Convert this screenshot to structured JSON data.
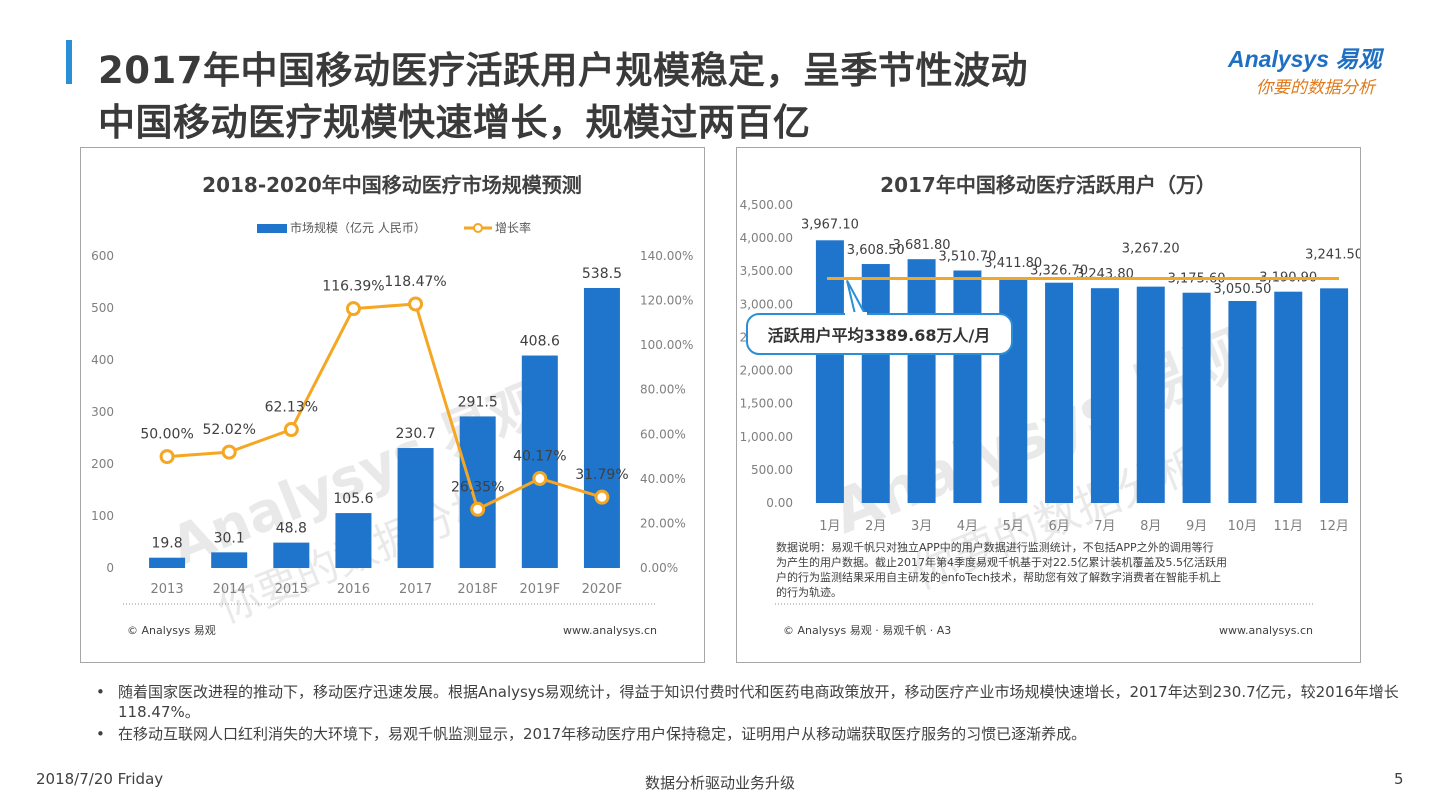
{
  "header": {
    "title_line1": "2017年中国移动医疗活跃用户规模稳定，呈季节性波动",
    "title_line2": "中国移动医疗规模快速增长，规模过两百亿",
    "logo_en": "Analysys 易观",
    "logo_cn": "你要的数据分析"
  },
  "colors": {
    "bar": "#1f74cc",
    "line": "#f5a623",
    "accent": "#2b8fd6",
    "avg_line": "#f5a623"
  },
  "left_chart": {
    "footer_left": "© Analysys 易观",
    "footer_right": "www.analysys.cn",
    "watermark_en": "Analysys 易观",
    "watermark_cn": "你要的数据分析"
  },
  "right_chart": {
    "avg_label": "活跃用户平均3389.68万人/月",
    "note": "数据说明：易观千帆只对独立APP中的用户数据进行监测统计，不包括APP之外的调用等行为产生的用户数据。截止2017年第4季度易观千帆基于对22.5亿累计装机覆盖及5.5亿活跃用户的行为监测结果采用自主研发的enfoTech技术，帮助您有效了解数字消费者在智能手机上的行为轨迹。",
    "note_lines": [
      "数据说明：易观千帆只对独立APP中的用户数据进行监测统计，不包括APP之外的调用等行",
      "为产生的用户数据。截止2017年第4季度易观千帆基于对22.5亿累计装机覆盖及5.5亿活跃用",
      "户的行为监测结果采用自主研发的enfoTech技术，帮助您有效了解数字消费者在智能手机上",
      "的行为轨迹。"
    ],
    "footer_left": "© Analysys 易观 · 易观千帆 · A3",
    "footer_right": "www.analysys.cn",
    "watermark_en": "Analysys 易观",
    "watermark_cn": "你要的数据分析"
  },
  "chart_data": [
    {
      "type": "bar",
      "title": "2018-2020年中国移动医疗市场规模预测",
      "categories": [
        "2013",
        "2014",
        "2015",
        "2016",
        "2017",
        "2018F",
        "2019F",
        "2020F"
      ],
      "series": [
        {
          "name": "市场规模（亿元 人民币）",
          "type": "bar",
          "axis": "left",
          "values": [
            19.8,
            30.1,
            48.8,
            105.6,
            230.7,
            291.5,
            408.6,
            538.5
          ]
        },
        {
          "name": "增长率",
          "type": "line",
          "axis": "right",
          "values": [
            50.0,
            52.02,
            62.13,
            116.39,
            118.47,
            26.35,
            40.17,
            31.79
          ],
          "labels": [
            "50.00%",
            "52.02%",
            "62.13%",
            "116.39%",
            "118.47%",
            "26.35%",
            "40.17%",
            "31.79%"
          ]
        }
      ],
      "ylim": [
        0,
        600
      ],
      "yticks": [
        0,
        100,
        200,
        300,
        400,
        500,
        600
      ],
      "y2lim": [
        0,
        140
      ],
      "y2ticks": [
        "0.00%",
        "20.00%",
        "40.00%",
        "60.00%",
        "80.00%",
        "100.00%",
        "120.00%",
        "140.00%"
      ],
      "legend": "top-center",
      "grid": false
    },
    {
      "type": "bar",
      "title": "2017年中国移动医疗活跃用户（万）",
      "categories": [
        "1月",
        "2月",
        "3月",
        "4月",
        "5月",
        "6月",
        "7月",
        "8月",
        "9月",
        "10月",
        "11月",
        "12月"
      ],
      "series": [
        {
          "name": "",
          "values": [
            3967.1,
            3608.5,
            3681.8,
            3510.7,
            3411.8,
            3326.7,
            3243.8,
            3267.2,
            3175.6,
            3050.5,
            3190.9,
            3241.5
          ],
          "labels": [
            "3,967.10",
            "3,608.50",
            "3,681.80",
            "3,510.70",
            "3,411.80",
            "3,326.70",
            "3,243.80",
            "3,267.20",
            "3,175.60",
            "3,050.50",
            "3,190.90",
            "3,241.50"
          ]
        }
      ],
      "reference_line": 3389.68,
      "ylim": [
        0,
        4500
      ],
      "yticks": [
        "0.00",
        "500.00",
        "1,000.00",
        "1,500.00",
        "2,000.00",
        "2,500.00",
        "3,000.00",
        "3,500.00",
        "4,000.00",
        "4,500.00"
      ],
      "legend": "none",
      "grid": false
    }
  ],
  "bullets": [
    "随着国家医改进程的推动下，移动医疗迅速发展。根据Analysys易观统计，得益于知识付费时代和医药电商政策放开，移动医疗产业市场规模快速增长，2017年达到230.7亿元，较2016年增长118.47%。",
    "在移动互联网人口红利消失的大环境下，易观千帆监测显示，2017年移动医疗用户保持稳定，证明用户从移动端获取医疗服务的习惯已逐渐养成。"
  ],
  "bullet_symbol": "•",
  "footer": {
    "date": "2018/7/20 Friday",
    "center": "数据分析驱动业务升级",
    "page": "5"
  }
}
